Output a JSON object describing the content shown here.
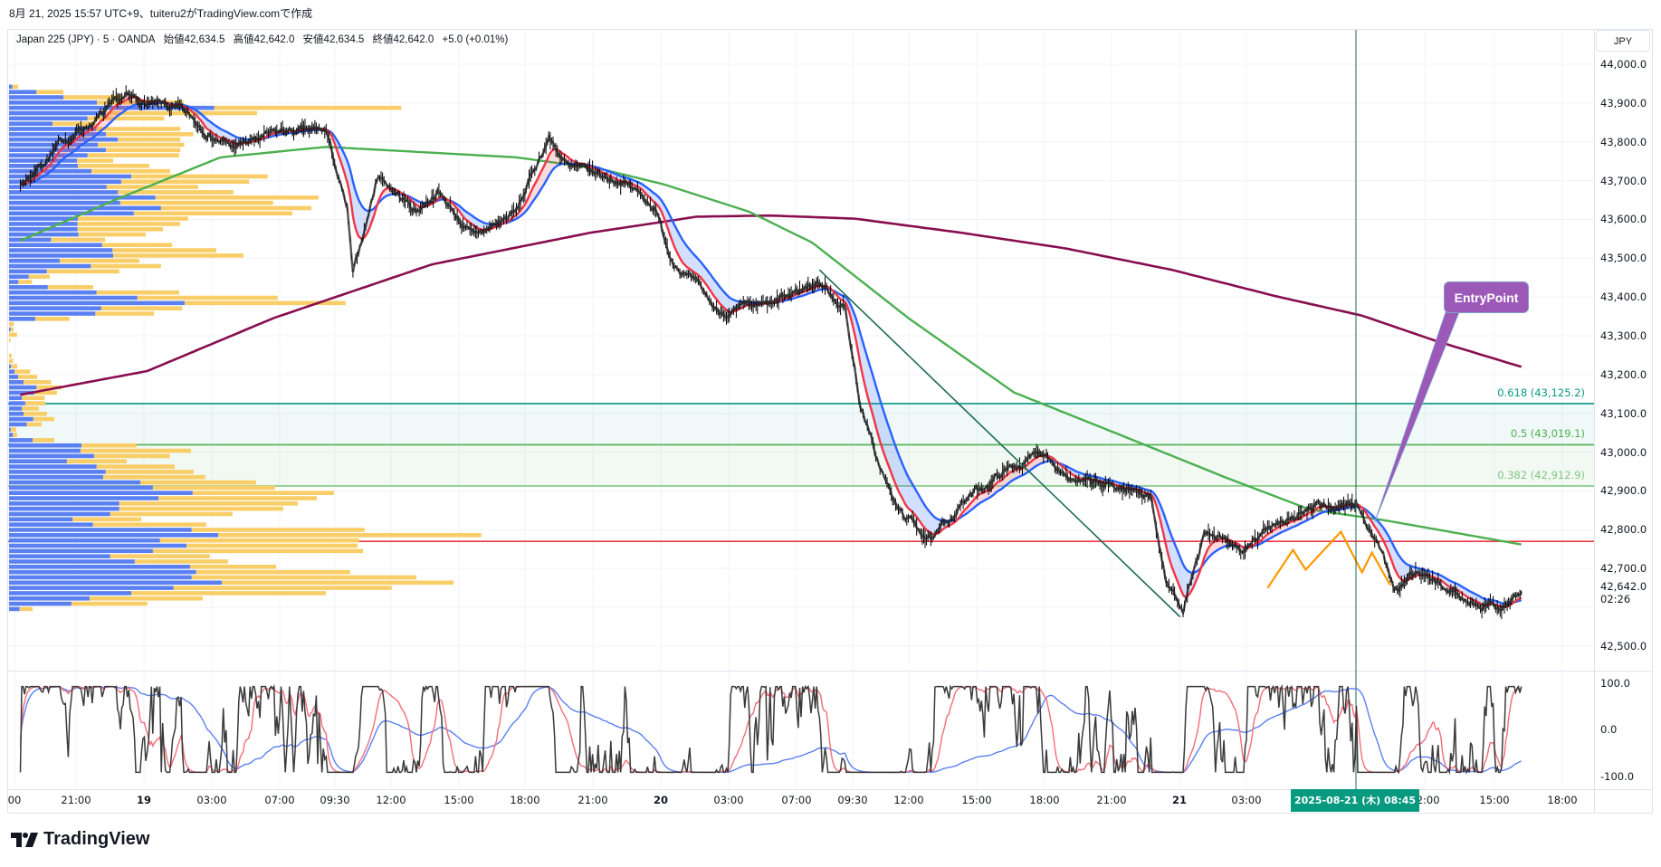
{
  "caption": "8月 21, 2025 15:57 UTC+9、tuiteru2がTradingView.comで作成",
  "legend": {
    "symbol": "Japan 225 (JPY) · 5 · OANDA",
    "open": "始値42,634.5",
    "high": "高値42,642.0",
    "low": "安値42,634.5",
    "close": "終値42,642.0",
    "change": "+5.0 (+0.01%)"
  },
  "currency": "JPY",
  "current_price": {
    "label": "42,642.0",
    "countdown": "02:26",
    "value": 42642.0
  },
  "price_ticks": [
    "44,000.0",
    "43,900.0",
    "43,800.0",
    "43,700.0",
    "43,600.0",
    "43,500.0",
    "43,400.0",
    "43,300.0",
    "43,200.0",
    "43,100.0",
    "43,000.0",
    "42,900.0",
    "42,800.0",
    "42,700.0",
    "42,500.0"
  ],
  "price_tick_values": [
    44000,
    43900,
    43800,
    43700,
    43600,
    43500,
    43400,
    43300,
    43200,
    43100,
    43000,
    42900,
    42800,
    42700,
    42500
  ],
  "oscillator_ticks": [
    "100.0",
    "0.0",
    "-100.0"
  ],
  "time_labels": [
    "00",
    "21:00",
    "19",
    "03:00",
    "07:00",
    "09:30",
    "12:00",
    "15:00",
    "18:00",
    "21:00",
    "20",
    "03:00",
    "07:00",
    "09:30",
    "12:00",
    "15:00",
    "18:00",
    "21:00",
    "21",
    "03:00",
    "12:00",
    "15:00",
    "18:00"
  ],
  "time_highlight": "2025-08-21 (木)   08:45",
  "fib_levels": [
    {
      "label": "0.618 (43,125.2)",
      "price": 43125.2,
      "color": "#089981"
    },
    {
      "label": "0.5 (43,019.1)",
      "price": 43019.1,
      "color": "#4caf50"
    },
    {
      "label": "0.382 (42,912.9)",
      "price": 42912.9,
      "color": "#81c784"
    }
  ],
  "horizontal_line": {
    "price": 42770,
    "color": "#f23645"
  },
  "annotation": {
    "text": "EntryPoint",
    "color": "#9c59b8"
  },
  "brand": "TradingView",
  "chart_data": {
    "type": "line",
    "title": "Japan 225 (JPY) · 5 · OANDA",
    "ylim": [
      42450,
      44050
    ],
    "xlabel": "",
    "ylabel": "JPY",
    "close_path": [
      [
        8,
        43690
      ],
      [
        38,
        43800
      ],
      [
        83,
        43910
      ],
      [
        120,
        43880
      ],
      [
        158,
        43785
      ],
      [
        195,
        43825
      ],
      [
        225,
        43825
      ],
      [
        240,
        43620
      ],
      [
        244,
        43450
      ],
      [
        262,
        43717
      ],
      [
        289,
        43620
      ],
      [
        304,
        43675
      ],
      [
        330,
        43552
      ],
      [
        360,
        43620
      ],
      [
        383,
        43813
      ],
      [
        398,
        43730
      ],
      [
        435,
        43700
      ],
      [
        458,
        43635
      ],
      [
        469,
        43510
      ],
      [
        503,
        43360
      ],
      [
        540,
        43374
      ],
      [
        574,
        43442
      ],
      [
        593,
        43374
      ],
      [
        604,
        43126
      ],
      [
        615,
        42989
      ],
      [
        630,
        42852
      ],
      [
        656,
        42770
      ],
      [
        675,
        42865
      ],
      [
        705,
        42948
      ],
      [
        735,
        43003
      ],
      [
        758,
        42920
      ],
      [
        788,
        42907
      ],
      [
        810,
        42893
      ],
      [
        821,
        42660
      ],
      [
        833,
        42604
      ],
      [
        848,
        42783
      ],
      [
        878,
        42742
      ],
      [
        900,
        42824
      ],
      [
        923,
        42852
      ],
      [
        956,
        42865
      ],
      [
        975,
        42742
      ],
      [
        983,
        42632
      ],
      [
        998,
        42687
      ],
      [
        1035,
        42618
      ],
      [
        1058,
        42604
      ],
      [
        1073,
        42640
      ]
    ],
    "ma_green": [
      [
        8,
        43545
      ],
      [
        75,
        43650
      ],
      [
        150,
        43760
      ],
      [
        225,
        43787
      ],
      [
        360,
        43760
      ],
      [
        420,
        43730
      ],
      [
        465,
        43690
      ],
      [
        525,
        43620
      ],
      [
        570,
        43540
      ],
      [
        638,
        43346
      ],
      [
        713,
        43154
      ],
      [
        788,
        43045
      ],
      [
        863,
        42935
      ],
      [
        923,
        42852
      ],
      [
        975,
        42825
      ],
      [
        1073,
        42762
      ]
    ],
    "ma_maroon": [
      [
        8,
        43148
      ],
      [
        98,
        43209
      ],
      [
        188,
        43346
      ],
      [
        300,
        43484
      ],
      [
        413,
        43566
      ],
      [
        488,
        43607
      ],
      [
        540,
        43610
      ],
      [
        600,
        43602
      ],
      [
        675,
        43566
      ],
      [
        750,
        43525
      ],
      [
        825,
        43470
      ],
      [
        900,
        43401
      ],
      [
        960,
        43352
      ],
      [
        1013,
        43286
      ],
      [
        1073,
        43220
      ]
    ],
    "ema_fast_period": 12,
    "ema_slow_period": 30,
    "trendline": [
      [
        575,
        43470
      ],
      [
        831,
        42575
      ]
    ],
    "zigzag": [
      [
        893,
        42650
      ],
      [
        911,
        42748
      ],
      [
        920,
        42697
      ],
      [
        945,
        42795
      ],
      [
        960,
        42690
      ],
      [
        967,
        42741
      ],
      [
        980,
        42657
      ]
    ],
    "annotation_target": [
      969,
      42820
    ],
    "volume_profile": {
      "price_top": 43942,
      "price_step": 13.6,
      "rows": [
        [
          40,
          58
        ],
        [
          115,
          198
        ],
        [
          198,
          383
        ],
        [
          302,
          570
        ],
        [
          665,
          1243
        ],
        [
          330,
          797
        ],
        [
          273,
          510
        ],
        [
          165,
          300
        ],
        [
          300,
          560
        ],
        [
          330,
          600
        ],
        [
          366,
          560
        ],
        [
          305,
          572
        ],
        [
          330,
          560
        ],
        [
          273,
          556
        ],
        [
          240,
          352
        ],
        [
          243,
          464
        ],
        [
          285,
          528
        ],
        [
          408,
          830
        ],
        [
          377,
          772
        ],
        [
          332,
          615
        ],
        [
          367,
          724
        ],
        [
          483,
          987
        ],
        [
          374,
          847
        ],
        [
          500,
          965
        ],
        [
          416,
          906
        ],
        [
          243,
          584
        ],
        [
          242,
          559
        ],
        [
          242,
          506
        ],
        [
          245,
          453
        ],
        [
          160,
          327
        ],
        [
          318,
          534
        ],
        [
          350,
          671
        ],
        [
          352,
          755
        ],
        [
          187,
          433
        ],
        [
          283,
          500
        ],
        [
          147,
          371
        ],
        [
          91,
          156
        ],
        [
          59,
          101
        ],
        [
          150,
          290
        ],
        [
          301,
          556
        ],
        [
          427,
          861
        ],
        [
          573,
          1071
        ],
        [
          315,
          565
        ],
        [
          297,
          478
        ],
        [
          111,
          217
        ],
        [
          30,
          44
        ],
        [
          35,
          44
        ],
        [
          30,
          55
        ],
        [
          30,
          35
        ],
        [
          30,
          30
        ],
        [
          30,
          30
        ],
        [
          30,
          38
        ],
        [
          30,
          42
        ],
        [
          36,
          55
        ],
        [
          47,
          95
        ],
        [
          58,
          117
        ],
        [
          75,
          160
        ],
        [
          115,
          192
        ],
        [
          108,
          178
        ],
        [
          70,
          140
        ],
        [
          80,
          142
        ],
        [
          70,
          122
        ],
        [
          75,
          147
        ],
        [
          105,
          170
        ],
        [
          85,
          131
        ],
        [
          35,
          52
        ],
        [
          42,
          55
        ],
        [
          103,
          170
        ],
        [
          254,
          425
        ],
        [
          251,
          593
        ],
        [
          293,
          528
        ],
        [
          209,
          394
        ],
        [
          301,
          542
        ],
        [
          329,
          601
        ],
        [
          321,
          637
        ],
        [
          436,
          794
        ],
        [
          475,
          853
        ],
        [
          598,
          1035
        ],
        [
          492,
          982
        ],
        [
          371,
          923
        ],
        [
          371,
          878
        ],
        [
          343,
          721
        ],
        [
          227,
          439
        ],
        [
          290,
          640
        ],
        [
          595,
          1130
        ],
        [
          677,
          1491
        ],
        [
          497,
          1113
        ],
        [
          579,
          1108
        ],
        [
          475,
          1125
        ],
        [
          343,
          651
        ],
        [
          419,
          707
        ],
        [
          590,
          856
        ],
        [
          609,
          1085
        ],
        [
          595,
          1290
        ],
        [
          688,
          1405
        ],
        [
          539,
          1214
        ],
        [
          408,
          1010
        ],
        [
          279,
          629
        ],
        [
          223,
          458
        ],
        [
          63,
          103
        ]
      ]
    },
    "oscillator": {
      "range": [
        -100,
        100
      ],
      "series": [
        "fast (black)",
        "mid (red)",
        "slow (blue)"
      ]
    }
  }
}
